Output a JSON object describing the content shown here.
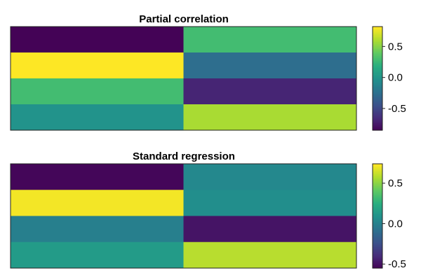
{
  "chart_data": [
    {
      "type": "heatmap",
      "title": "Partial correlation",
      "rows": 4,
      "cols": 2,
      "values": [
        [
          -0.84,
          0.3
        ],
        [
          0.82,
          -0.25
        ],
        [
          0.3,
          -0.68
        ],
        [
          0.0,
          0.6
        ]
      ],
      "colorbar": {
        "min": -0.85,
        "max": 0.82,
        "ticks": [
          0.5,
          0.0,
          -0.5
        ],
        "tick_labels": [
          "0.5",
          "0.0",
          "-0.5"
        ]
      },
      "colormap": [
        "#440154",
        "#472d7b",
        "#3b528b",
        "#2c728e",
        "#21918c",
        "#28ae80",
        "#5ec962",
        "#addc30",
        "#fde725"
      ]
    },
    {
      "type": "heatmap",
      "title": "Standard regression",
      "rows": 4,
      "cols": 2,
      "values": [
        [
          -0.53,
          0.05
        ],
        [
          0.72,
          0.08
        ],
        [
          0.0,
          -0.48
        ],
        [
          0.15,
          0.6
        ]
      ],
      "colorbar": {
        "min": -0.55,
        "max": 0.74,
        "ticks": [
          0.5,
          0.0,
          -0.5
        ],
        "tick_labels": [
          "0.5",
          "0.0",
          "-0.5"
        ]
      },
      "colormap": [
        "#440154",
        "#472d7b",
        "#3b528b",
        "#2c728e",
        "#21918c",
        "#28ae80",
        "#5ec962",
        "#addc30",
        "#fde725"
      ]
    }
  ]
}
